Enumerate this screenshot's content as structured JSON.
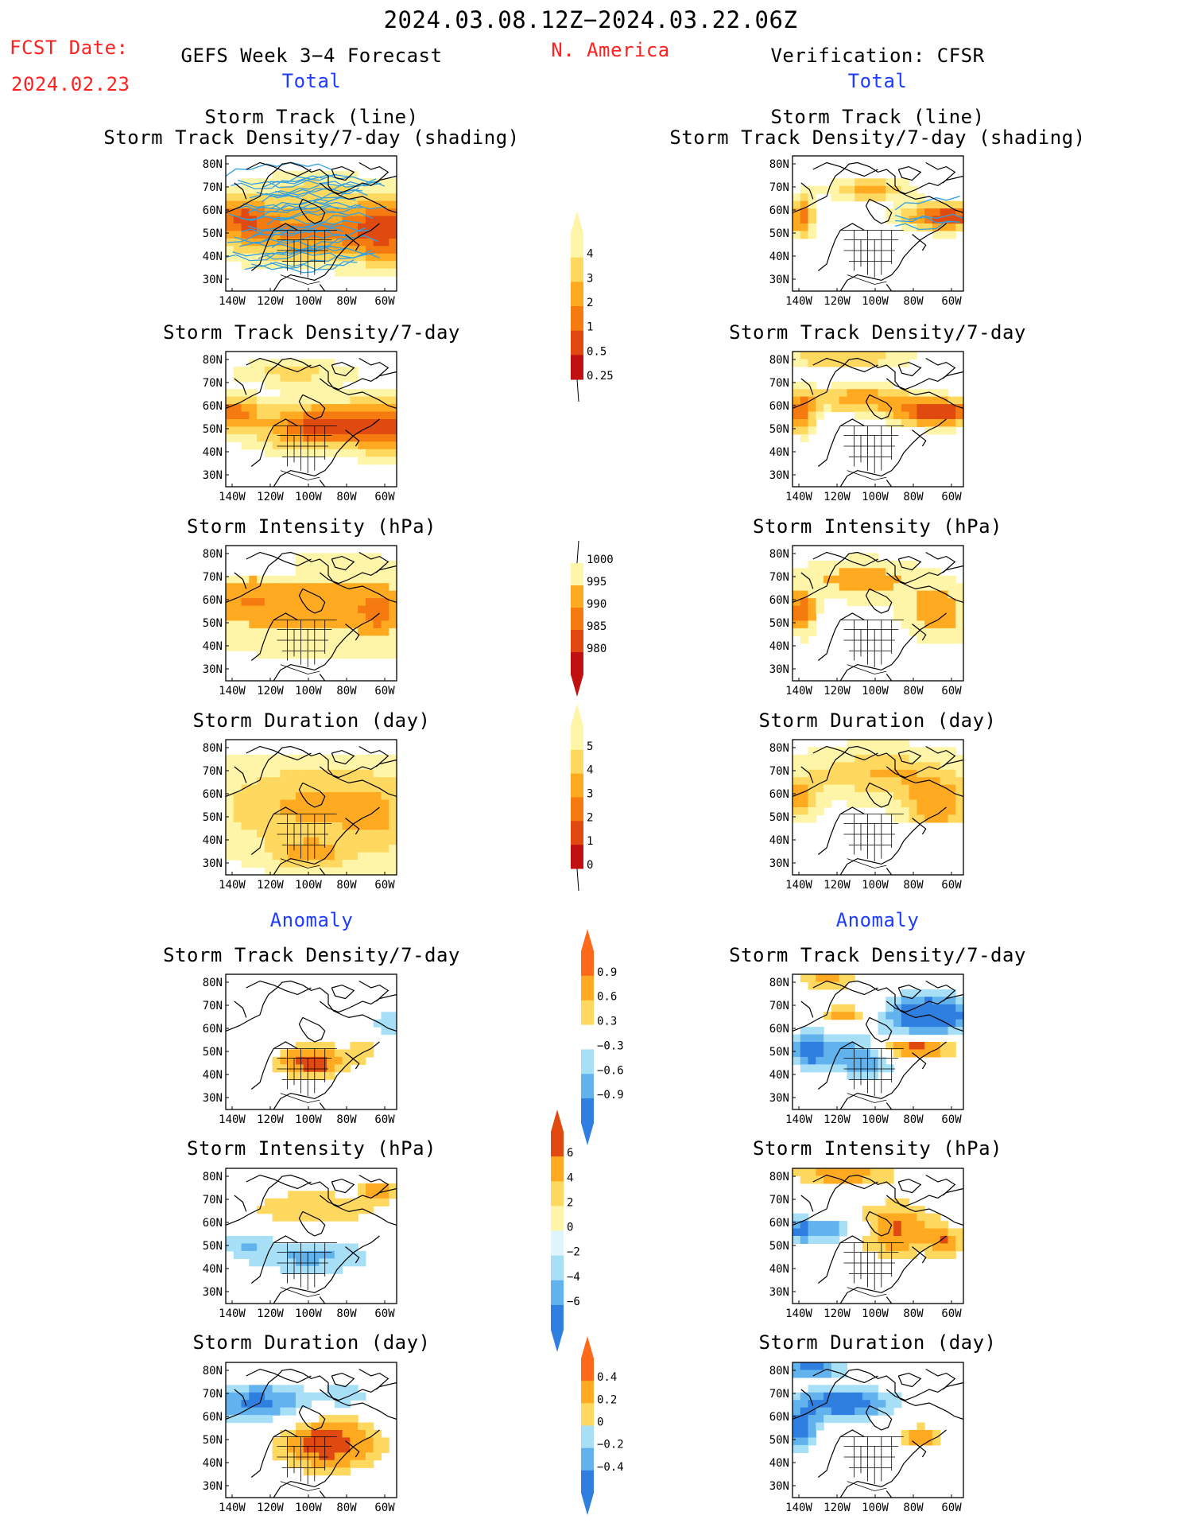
{
  "header": {
    "period": "2024.03.08.12Z−2024.03.22.06Z",
    "fcst_label": "FCST Date:",
    "fcst_date": "2024.02.23",
    "region": "N. America",
    "left_title": "GEFS Week 3−4 Forecast",
    "right_title": "Verification: CFSR",
    "total_left": "Total",
    "total_right": "Total",
    "anomaly_left": "Anomaly",
    "anomaly_right": "Anomaly"
  },
  "colors": {
    "warm": [
      "#fff5a8",
      "#ffd860",
      "#ffaa20",
      "#f57a10",
      "#e04a10",
      "#c01010",
      "#8f0000"
    ],
    "cool": [
      "#dff6ff",
      "#a7dff6",
      "#62b2ee",
      "#2e7fe0",
      "#1a5fc0"
    ],
    "track_line": "#33a0e0",
    "text_red": "#ff2020",
    "text_blue": "#1e3cff"
  },
  "map_axes": {
    "lon_ticks": [
      "140W",
      "120W",
      "100W",
      "80W",
      "60W"
    ],
    "lat_ticks": [
      "80N",
      "70N",
      "60N",
      "50N",
      "40N",
      "30N"
    ]
  },
  "panels": [
    {
      "title1": "Storm Track (line)",
      "title2": "Storm Track Density/7-day (shading)",
      "variable": "track",
      "source": "forecast"
    },
    {
      "title1": "Storm Track (line)",
      "title2": "Storm Track Density/7-day (shading)",
      "variable": "track",
      "source": "verification"
    },
    {
      "title1": "Storm Track Density/7-day",
      "variable": "density",
      "source": "forecast"
    },
    {
      "title1": "Storm Track Density/7-day",
      "variable": "density",
      "source": "verification"
    },
    {
      "title1": "Storm Intensity (hPa)",
      "variable": "intensity",
      "source": "forecast"
    },
    {
      "title1": "Storm Intensity (hPa)",
      "variable": "intensity",
      "source": "verification"
    },
    {
      "title1": "Storm Duration (day)",
      "variable": "duration",
      "source": "forecast"
    },
    {
      "title1": "Storm Duration (day)",
      "variable": "duration",
      "source": "verification"
    },
    {
      "title1": "Storm Track Density/7-day",
      "variable": "density_anom",
      "source": "forecast"
    },
    {
      "title1": "Storm Track Density/7-day",
      "variable": "density_anom",
      "source": "verification"
    },
    {
      "title1": "Storm Intensity (hPa)",
      "variable": "intensity_anom",
      "source": "forecast"
    },
    {
      "title1": "Storm Intensity (hPa)",
      "variable": "intensity_anom",
      "source": "verification"
    },
    {
      "title1": "Storm Duration (day)",
      "variable": "duration_anom",
      "source": "forecast"
    },
    {
      "title1": "Storm Duration (day)",
      "variable": "duration_anom",
      "source": "verification"
    }
  ],
  "chart_data": {
    "type": "heatmap",
    "colorbars": [
      {
        "variable": "density",
        "labels": [
          "0.25",
          "0.5",
          "1",
          "2",
          "3",
          "4"
        ],
        "colors": [
          "#fff5a8",
          "#ffd860",
          "#ffaa20",
          "#f57a10",
          "#e04a10",
          "#c01010"
        ]
      },
      {
        "variable": "intensity",
        "labels": [
          "1000",
          "995",
          "990",
          "985",
          "980"
        ],
        "colors": [
          "#fff5a8",
          "#ffaa20",
          "#f57a10",
          "#e04a10",
          "#c01010"
        ]
      },
      {
        "variable": "duration",
        "labels": [
          "0",
          "1",
          "2",
          "3",
          "4",
          "5"
        ],
        "colors": [
          "#fff5a8",
          "#ffd860",
          "#ffaa20",
          "#f57a10",
          "#e04a10",
          "#c01010"
        ]
      },
      {
        "variable": "density_anom",
        "labels": [
          "0.9",
          "0.6",
          "0.3",
          "−0.3",
          "−0.6",
          "−0.9"
        ],
        "colors": [
          "#ff6a1a",
          "#ffaa20",
          "#ffd860",
          "#ffffff",
          "#a7dff6",
          "#62b2ee",
          "#2e7fe0"
        ]
      },
      {
        "variable": "intensity_anom",
        "labels": [
          "6",
          "4",
          "2",
          "0",
          "−2",
          "−4",
          "−6"
        ],
        "colors": [
          "#e04a10",
          "#ffaa20",
          "#ffd860",
          "#fff5a8",
          "#dff6ff",
          "#a7dff6",
          "#62b2ee",
          "#2e7fe0"
        ]
      },
      {
        "variable": "duration_anom",
        "labels": [
          "0.4",
          "0.2",
          "0",
          "−0.2",
          "−0.4"
        ],
        "colors": [
          "#ff6a1a",
          "#ffaa20",
          "#ffd860",
          "#a7dff6",
          "#62b2ee",
          "#2e7fe0"
        ]
      }
    ],
    "lon_range": [
      "140W",
      "50W"
    ],
    "lat_range": [
      "25N",
      "85N"
    ]
  }
}
